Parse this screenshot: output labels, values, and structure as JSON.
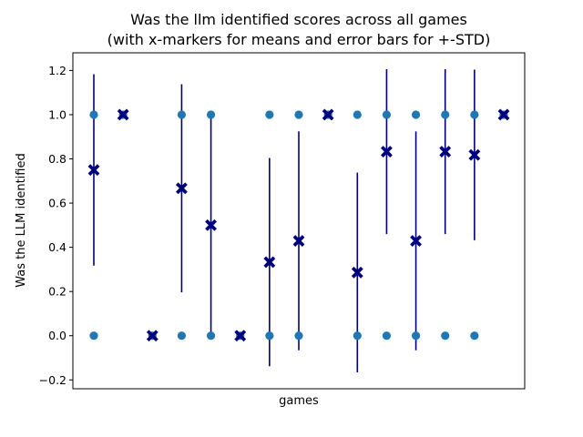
{
  "chart_data": {
    "type": "scatter",
    "title_line1": "Was the llm identified scores across all games",
    "title_line2": "(with x-markers for means and error bars for +-STD)",
    "xlabel": "games",
    "ylabel": "Was the LLM identified",
    "ylim": [
      -0.24,
      1.28
    ],
    "yticks": [
      -0.2,
      0.0,
      0.2,
      0.4,
      0.6,
      0.8,
      1.0,
      1.2
    ],
    "ytick_labels": [
      "−0.2",
      "0.0",
      "0.2",
      "0.4",
      "0.6",
      "0.8",
      "1.0",
      "1.2"
    ],
    "grid": false,
    "colors": {
      "points": "#1f77b4",
      "means": "#00007f",
      "errorbars": "#00007f"
    },
    "games": [
      {
        "points": [
          0,
          1
        ],
        "mean": 0.75,
        "std": 0.433
      },
      {
        "points": [
          1
        ],
        "mean": 1.0,
        "std": 0.0
      },
      {
        "points": [
          0
        ],
        "mean": 0.0,
        "std": 0.0
      },
      {
        "points": [
          0,
          1
        ],
        "mean": 0.667,
        "std": 0.471
      },
      {
        "points": [
          0,
          1
        ],
        "mean": 0.5,
        "std": 0.5
      },
      {
        "points": [
          0
        ],
        "mean": 0.0,
        "std": 0.0
      },
      {
        "points": [
          0,
          1
        ],
        "mean": 0.333,
        "std": 0.471
      },
      {
        "points": [
          0,
          1
        ],
        "mean": 0.429,
        "std": 0.495
      },
      {
        "points": [
          1
        ],
        "mean": 1.0,
        "std": 0.0
      },
      {
        "points": [
          0,
          1
        ],
        "mean": 0.286,
        "std": 0.452
      },
      {
        "points": [
          0,
          1
        ],
        "mean": 0.833,
        "std": 0.373
      },
      {
        "points": [
          0,
          1
        ],
        "mean": 0.429,
        "std": 0.495
      },
      {
        "points": [
          0,
          1
        ],
        "mean": 0.833,
        "std": 0.373
      },
      {
        "points": [
          0,
          1
        ],
        "mean": 0.818,
        "std": 0.386
      },
      {
        "points": [
          1
        ],
        "mean": 1.0,
        "std": 0.0
      }
    ]
  }
}
